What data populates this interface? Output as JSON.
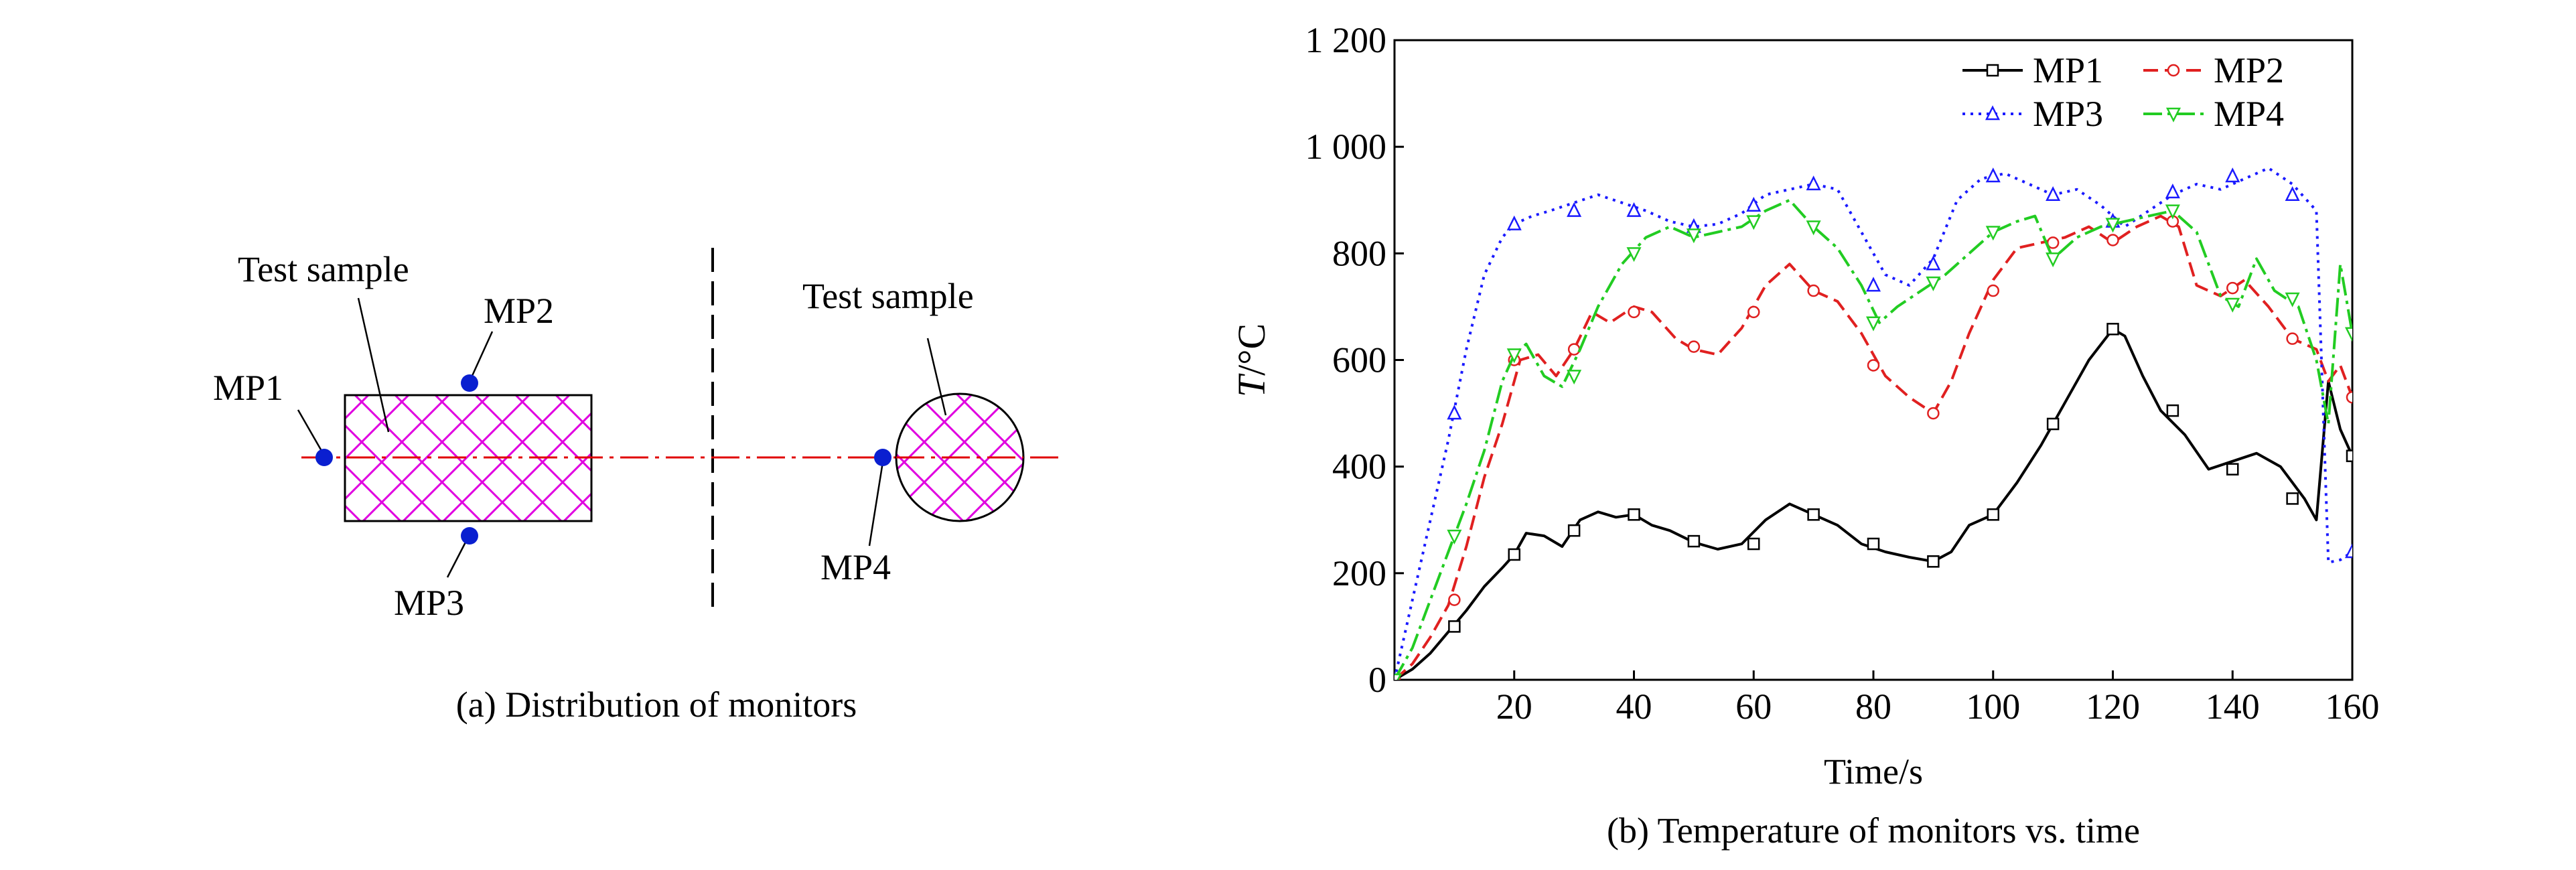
{
  "panel_a": {
    "caption": "(a) Distribution of monitors",
    "labels": {
      "test_sample_rect": "Test sample",
      "test_sample_circle": "Test sample",
      "mp1": "MP1",
      "mp2": "MP2",
      "mp3": "MP3",
      "mp4": "MP4"
    }
  },
  "panel_b": {
    "caption": "(b) Temperature of monitors vs. time"
  },
  "colors": {
    "hatch": "#e000e0",
    "monitor": "#0a1fd0",
    "centerline": "#e00000",
    "mp1": "#000000",
    "mp2": "#e02020",
    "mp3": "#1a1aff",
    "mp4": "#22cc22"
  },
  "chart_data": {
    "type": "line",
    "title": "(b) Temperature of monitors vs. time",
    "xlabel": "Time/s",
    "ylabel_italic": "T",
    "ylabel_unit": "/°C",
    "xlim": [
      0,
      160
    ],
    "ylim": [
      0,
      1200
    ],
    "xticks": [
      20,
      40,
      60,
      80,
      100,
      120,
      140,
      160
    ],
    "xtick_labels": [
      "20",
      "40",
      "60",
      "80",
      "100",
      "120",
      "140",
      "160"
    ],
    "yticks": [
      0,
      200,
      400,
      600,
      800,
      1000,
      1200
    ],
    "ytick_labels": [
      "0",
      "200",
      "400",
      "600",
      "800",
      "1 000",
      "1 200"
    ],
    "legend_position": "top-right",
    "series": [
      {
        "name": "MP1",
        "style": "solid",
        "marker": "square",
        "x": [
          0,
          3,
          6,
          9,
          12,
          15,
          18,
          20,
          22,
          25,
          28,
          31,
          34,
          37,
          40,
          43,
          46,
          50,
          54,
          58,
          62,
          66,
          70,
          74,
          78,
          82,
          86,
          90,
          93,
          96,
          100,
          104,
          108,
          112,
          116,
          120,
          122,
          125,
          128,
          132,
          136,
          140,
          144,
          148,
          152,
          154,
          156,
          158,
          160
        ],
        "y": [
          0,
          20,
          50,
          90,
          130,
          175,
          210,
          235,
          275,
          270,
          250,
          300,
          315,
          305,
          310,
          290,
          280,
          258,
          245,
          255,
          300,
          330,
          310,
          290,
          255,
          240,
          230,
          222,
          240,
          290,
          310,
          370,
          440,
          520,
          600,
          658,
          645,
          570,
          505,
          460,
          395,
          410,
          425,
          400,
          340,
          300,
          560,
          470,
          420
        ],
        "markers_x": [
          0,
          10,
          20,
          30,
          40,
          50,
          60,
          70,
          80,
          90,
          100,
          110,
          120,
          130,
          140,
          150,
          160
        ],
        "markers_y": [
          0,
          100,
          235,
          280,
          310,
          260,
          255,
          310,
          255,
          222,
          310,
          480,
          658,
          505,
          395,
          340,
          420
        ]
      },
      {
        "name": "MP2",
        "style": "dashed",
        "marker": "circle",
        "x": [
          0,
          3,
          6,
          9,
          12,
          15,
          18,
          21,
          24,
          27,
          30,
          33,
          36,
          40,
          43,
          47,
          50,
          54,
          58,
          62,
          66,
          70,
          74,
          78,
          82,
          86,
          90,
          93,
          96,
          100,
          104,
          108,
          112,
          116,
          120,
          124,
          128,
          131,
          134,
          138,
          142,
          146,
          150,
          154,
          156,
          158,
          160
        ],
        "y": [
          0,
          30,
          80,
          140,
          250,
          380,
          480,
          600,
          610,
          570,
          620,
          690,
          670,
          700,
          690,
          640,
          620,
          610,
          660,
          740,
          780,
          730,
          710,
          650,
          570,
          530,
          500,
          560,
          650,
          750,
          810,
          820,
          830,
          850,
          820,
          850,
          870,
          850,
          740,
          720,
          750,
          700,
          640,
          620,
          560,
          590,
          530
        ],
        "markers_x": [
          0,
          10,
          20,
          30,
          40,
          50,
          60,
          70,
          80,
          90,
          100,
          110,
          120,
          130,
          140,
          150,
          160
        ],
        "markers_y": [
          0,
          150,
          600,
          620,
          690,
          625,
          690,
          730,
          590,
          500,
          730,
          820,
          825,
          860,
          735,
          640,
          530
        ]
      },
      {
        "name": "MP3",
        "style": "dotted",
        "marker": "triangle",
        "x": [
          0,
          3,
          6,
          9,
          12,
          15,
          18,
          20,
          23,
          26,
          30,
          34,
          38,
          42,
          46,
          50,
          54,
          58,
          62,
          66,
          70,
          74,
          78,
          82,
          86,
          90,
          94,
          98,
          102,
          106,
          110,
          114,
          118,
          122,
          126,
          130,
          134,
          138,
          142,
          146,
          150,
          154,
          156,
          158,
          160
        ],
        "y": [
          0,
          150,
          300,
          450,
          620,
          760,
          830,
          855,
          870,
          880,
          895,
          910,
          895,
          880,
          860,
          850,
          855,
          875,
          910,
          920,
          930,
          920,
          840,
          760,
          740,
          790,
          900,
          940,
          950,
          930,
          910,
          920,
          890,
          850,
          880,
          910,
          930,
          920,
          940,
          960,
          930,
          880,
          220,
          225,
          240
        ],
        "markers_x": [
          0,
          10,
          20,
          30,
          40,
          50,
          60,
          70,
          80,
          90,
          100,
          110,
          120,
          130,
          140,
          150,
          160
        ],
        "markers_y": [
          0,
          500,
          855,
          880,
          880,
          850,
          890,
          930,
          740,
          780,
          945,
          910,
          860,
          915,
          945,
          910,
          240
        ]
      },
      {
        "name": "MP4",
        "style": "dashdot",
        "marker": "inverted-triangle",
        "x": [
          0,
          3,
          6,
          9,
          12,
          15,
          18,
          20,
          22,
          25,
          28,
          31,
          34,
          38,
          42,
          46,
          50,
          54,
          58,
          62,
          66,
          70,
          74,
          78,
          81,
          84,
          88,
          92,
          96,
          100,
          104,
          107,
          110,
          114,
          118,
          122,
          126,
          130,
          134,
          138,
          141,
          144,
          147,
          151,
          154,
          156,
          158,
          160
        ],
        "y": [
          0,
          60,
          150,
          240,
          330,
          430,
          560,
          610,
          630,
          570,
          550,
          620,
          700,
          780,
          830,
          850,
          830,
          840,
          850,
          880,
          900,
          850,
          810,
          740,
          670,
          700,
          730,
          760,
          800,
          840,
          860,
          870,
          790,
          830,
          850,
          860,
          870,
          880,
          840,
          720,
          700,
          790,
          730,
          700,
          600,
          480,
          780,
          650
        ],
        "markers_x": [
          0,
          10,
          20,
          30,
          40,
          50,
          60,
          70,
          80,
          90,
          100,
          110,
          120,
          130,
          140,
          150,
          160
        ],
        "markers_y": [
          0,
          270,
          610,
          570,
          800,
          835,
          860,
          850,
          670,
          745,
          840,
          790,
          855,
          880,
          705,
          715,
          650
        ]
      }
    ]
  }
}
